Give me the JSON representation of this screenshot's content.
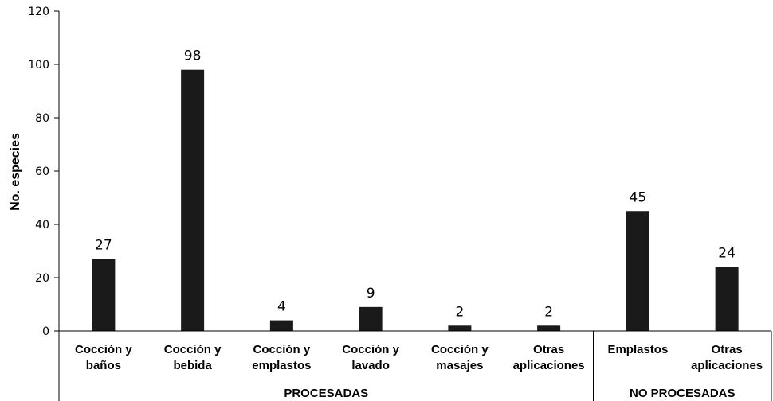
{
  "chart_data": {
    "type": "bar",
    "ylabel": "No. especies",
    "ylim": [
      0,
      120
    ],
    "yticks": [
      "0",
      "20",
      "40",
      "60",
      "80",
      "100",
      "120"
    ],
    "grid": false,
    "bar_color": "#1a1a1a",
    "categories": [
      {
        "label": [
          "Cocción y",
          "baños"
        ],
        "value": 27,
        "group": 0
      },
      {
        "label": [
          "Cocción y",
          "bebida"
        ],
        "value": 98,
        "group": 0
      },
      {
        "label": [
          "Cocción y",
          "emplastos"
        ],
        "value": 4,
        "group": 0
      },
      {
        "label": [
          "Cocción y",
          "lavado"
        ],
        "value": 9,
        "group": 0
      },
      {
        "label": [
          "Cocción y",
          "masajes"
        ],
        "value": 2,
        "group": 0
      },
      {
        "label": [
          "Otras",
          "aplicaciones"
        ],
        "value": 2,
        "group": 0
      },
      {
        "label": [
          "Emplastos"
        ],
        "value": 45,
        "group": 1
      },
      {
        "label": [
          "Otras",
          "aplicaciones"
        ],
        "value": 24,
        "group": 1
      }
    ],
    "groups": [
      "PROCESADAS",
      "NO PROCESADAS"
    ]
  }
}
